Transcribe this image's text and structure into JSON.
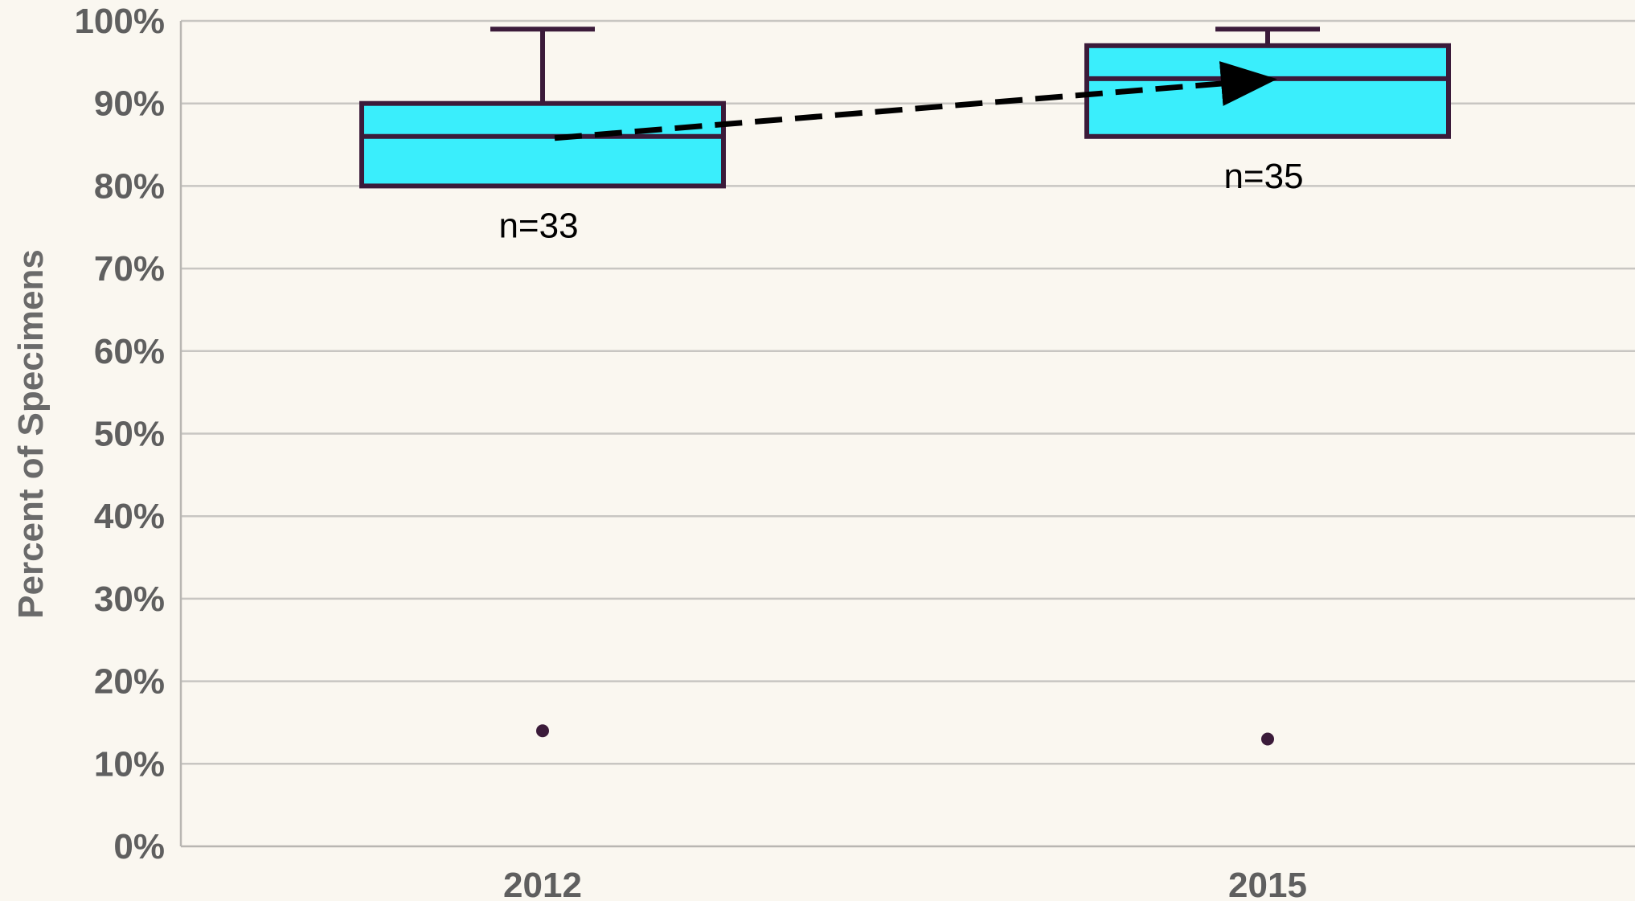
{
  "chart_data": {
    "type": "boxplot",
    "ylabel": "Percent of Specimens",
    "ylim": [
      0,
      100
    ],
    "y_ticks": [
      "0%",
      "10%",
      "20%",
      "30%",
      "40%",
      "50%",
      "60%",
      "70%",
      "80%",
      "90%",
      "100%"
    ],
    "categories": [
      "2012",
      "2015"
    ],
    "boxes": [
      {
        "category": "2012",
        "whisker_low": 80,
        "q1": 80,
        "median": 86,
        "q3": 90,
        "whisker_high": 99,
        "outliers": [
          14
        ],
        "n_label": "n=33"
      },
      {
        "category": "2015",
        "whisker_low": 86,
        "q1": 86,
        "median": 93,
        "q3": 97,
        "whisker_high": 99,
        "outliers": [
          13
        ],
        "n_label": "n=35"
      }
    ],
    "trend_arrow": {
      "from": {
        "category": "2012",
        "y": 86
      },
      "to": {
        "category": "2015",
        "y": 93
      },
      "style": "dashed"
    },
    "grid": true,
    "colors": {
      "box_fill": "#3aeefc",
      "box_stroke": "#3b1b3a",
      "grid": "#c8c6c2",
      "text": "#5f5f5f",
      "background": "#faf7f0",
      "arrow": "#000000"
    }
  }
}
